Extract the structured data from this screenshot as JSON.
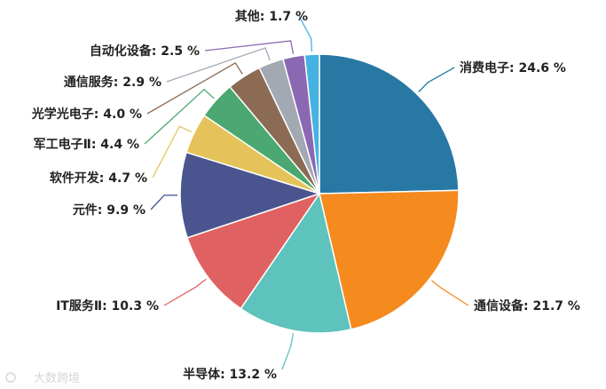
{
  "chart_data": {
    "type": "pie",
    "slices": [
      {
        "label": "消费电子: 24.6 %",
        "value": 24.6,
        "color": "#2878a4"
      },
      {
        "label": "通信设备: 21.7 %",
        "value": 21.7,
        "color": "#f58a1f"
      },
      {
        "label": "半导体: 13.2 %",
        "value": 13.2,
        "color": "#5ec2bd"
      },
      {
        "label": "IT服务Ⅱ: 10.3 %",
        "value": 10.3,
        "color": "#e06161"
      },
      {
        "label": "元件: 9.9 %",
        "value": 9.9,
        "color": "#4a5590"
      },
      {
        "label": "软件开发: 4.7 %",
        "value": 4.7,
        "color": "#e5c35a"
      },
      {
        "label": "军工电子Ⅱ: 4.4 %",
        "value": 4.4,
        "color": "#4aa870"
      },
      {
        "label": "光学光电子: 4.0 %",
        "value": 4.0,
        "color": "#8c6b55"
      },
      {
        "label": "通信服务: 2.9 %",
        "value": 2.9,
        "color": "#a3a9b3"
      },
      {
        "label": "自动化设备: 2.5 %",
        "value": 2.5,
        "color": "#8a69b2"
      },
      {
        "label": "其他: 1.7 %",
        "value": 1.7,
        "color": "#45b3e1"
      }
    ]
  },
  "watermark": "大数跨境"
}
